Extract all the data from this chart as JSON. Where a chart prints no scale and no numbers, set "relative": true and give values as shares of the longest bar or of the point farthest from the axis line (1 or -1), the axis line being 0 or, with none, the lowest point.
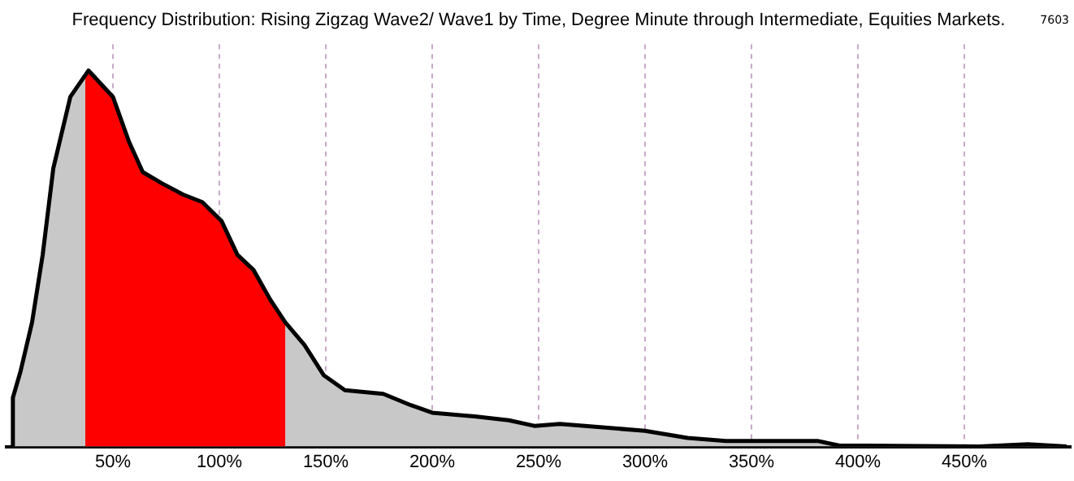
{
  "chart_data": {
    "type": "area",
    "title": "Frequency Distribution: Rising Zigzag Wave2/ Wave1 by Time, Degree Minute through Intermediate, Equities Markets.",
    "annotations": [
      "7603"
    ],
    "relative": true,
    "x": [
      2.5,
      3,
      6.6,
      12,
      17,
      22,
      30,
      38.5,
      50,
      57.6,
      64,
      73,
      83,
      92,
      101,
      108.5,
      116,
      124,
      131,
      140,
      149,
      159,
      177,
      190,
      200,
      220,
      236,
      248,
      260,
      300,
      320,
      338,
      381,
      391,
      457,
      480,
      498
    ],
    "series": [
      {
        "color": "#c8c8c8",
        "values": [
          0,
          0.13,
          0.2,
          0.33,
          0.51,
          0.74,
          0.93,
          1,
          0.93,
          0.81,
          0.73,
          0.7,
          0.67,
          0.65,
          0.6,
          0.51,
          0.47,
          0.39,
          0.33,
          0.27,
          0.19,
          0.15,
          0.14,
          0.11,
          0.09,
          0.08,
          0.07,
          0.055,
          0.06,
          0.042,
          0.023,
          0.015,
          0.015,
          0.003,
          0,
          0.006,
          0
        ]
      },
      {
        "type": "area",
        "color": "#ff0000",
        "x": [
          37,
          38.5,
          50,
          57.6,
          64,
          73,
          83,
          92,
          101,
          108.5,
          116,
          124,
          131
        ],
        "values": [
          0.99,
          1,
          0.93,
          0.81,
          0.73,
          0.7,
          0.67,
          0.65,
          0.6,
          0.51,
          0.47,
          0.39,
          0.33
        ]
      }
    ],
    "xlim": [
      0,
      500
    ],
    "xticks": [
      {
        "value": 50,
        "label": "50%"
      },
      {
        "value": 100,
        "label": "100%"
      },
      {
        "value": 150,
        "label": "150%"
      },
      {
        "value": 200,
        "label": "200%"
      },
      {
        "value": 250,
        "label": "250%"
      },
      {
        "value": 300,
        "label": "300%"
      },
      {
        "value": 350,
        "label": "350%"
      },
      {
        "value": 400,
        "label": "400%"
      },
      {
        "value": 450,
        "label": "450%"
      }
    ],
    "grid": "x",
    "legend": false,
    "marker": "none",
    "line_style": "solid"
  }
}
